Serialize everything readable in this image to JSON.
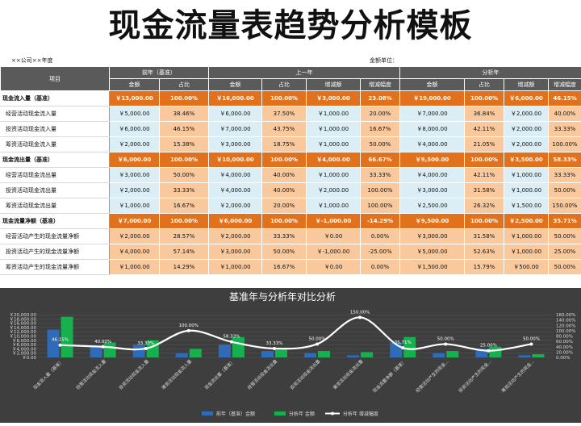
{
  "title": "现金流量表趋势分析模板",
  "company_line": "××公司××年度",
  "unit_line": "金额单位：",
  "headers": {
    "item": "项目",
    "groups": [
      "前年（基准）",
      "上一年",
      "分析年"
    ],
    "cols": [
      "金额",
      "占比",
      "金额",
      "占比",
      "增减额",
      "增减幅度",
      "金额",
      "占比",
      "增减额",
      "增减幅度"
    ]
  },
  "rows": [
    {
      "label": "现金流入量（基准）",
      "style": "hl",
      "cells": [
        "￥13,000.00",
        "100.00%",
        "￥16,000.00",
        "100.00%",
        "￥3,000.00",
        "23.08%",
        "￥19,000.00",
        "100.00%",
        "￥6,000.00",
        "46.15%"
      ]
    },
    {
      "label": "经营活动现金流入量",
      "style": "sb",
      "cells": [
        "￥5,000.00",
        "38.46%",
        "￥6,000.00",
        "37.50%",
        "￥1,000.00",
        "20.00%",
        "￥7,000.00",
        "36.84%",
        "￥2,000.00",
        "40.00%"
      ]
    },
    {
      "label": "投资活动现金流入量",
      "style": "sb",
      "cells": [
        "￥6,000.00",
        "46.15%",
        "￥7,000.00",
        "43.75%",
        "￥1,000.00",
        "16.67%",
        "￥8,000.00",
        "42.11%",
        "￥2,000.00",
        "33.33%"
      ]
    },
    {
      "label": "筹资活动现金流入量",
      "style": "sb",
      "cells": [
        "￥2,000.00",
        "15.38%",
        "￥3,000.00",
        "18.75%",
        "￥1,000.00",
        "50.00%",
        "￥4,000.00",
        "21.05%",
        "￥2,000.00",
        "100.00%"
      ]
    },
    {
      "label": "现金流出量（基准）",
      "style": "hl",
      "cells": [
        "￥6,000.00",
        "100.00%",
        "￥10,000.00",
        "100.00%",
        "￥4,000.00",
        "66.67%",
        "￥9,500.00",
        "100.00%",
        "￥3,500.00",
        "58.33%"
      ]
    },
    {
      "label": "经营活动现金流出量",
      "style": "sb",
      "cells": [
        "￥3,000.00",
        "50.00%",
        "￥4,000.00",
        "40.00%",
        "￥1,000.00",
        "33.33%",
        "￥4,000.00",
        "42.11%",
        "￥1,000.00",
        "33.33%"
      ]
    },
    {
      "label": "投资活动现金流出量",
      "style": "sb",
      "cells": [
        "￥2,000.00",
        "33.33%",
        "￥4,000.00",
        "40.00%",
        "￥2,000.00",
        "100.00%",
        "￥3,000.00",
        "31.58%",
        "￥1,000.00",
        "50.00%"
      ]
    },
    {
      "label": "筹资活动现金流出量",
      "style": "sb",
      "cells": [
        "￥1,000.00",
        "16.67%",
        "￥2,000.00",
        "20.00%",
        "￥1,000.00",
        "100.00%",
        "￥2,500.00",
        "26.32%",
        "￥1,500.00",
        "150.00%"
      ]
    },
    {
      "label": "现金流量净额（基准）",
      "style": "hl",
      "cells": [
        "￥7,000.00",
        "100.00%",
        "￥6,000.00",
        "100.00%",
        "￥-1,000.00",
        "-14.29%",
        "￥9,500.00",
        "100.00%",
        "￥2,500.00",
        "35.71%"
      ]
    },
    {
      "label": "经营活动产生的现金流量净额",
      "style": "so",
      "cells": [
        "￥2,000.00",
        "28.57%",
        "￥2,000.00",
        "33.33%",
        "￥0.00",
        "0.00%",
        "￥3,000.00",
        "31.58%",
        "￥1,000.00",
        "50.00%"
      ]
    },
    {
      "label": "投资活动产生的现金流量净额",
      "style": "so",
      "cells": [
        "￥4,000.00",
        "57.14%",
        "￥3,000.00",
        "50.00%",
        "￥-1,000.00",
        "-25.00%",
        "￥5,000.00",
        "52.63%",
        "￥1,000.00",
        "25.00%"
      ]
    },
    {
      "label": "筹资活动产生的现金流量净额",
      "style": "so",
      "cells": [
        "￥1,000.00",
        "14.29%",
        "￥1,000.00",
        "16.67%",
        "￥0.00",
        "0.00%",
        "￥1,500.00",
        "15.79%",
        "￥500.00",
        "50.00%"
      ]
    }
  ],
  "colors": {
    "header_gray": "#5a5a5a",
    "orange": "#e2711d",
    "light_blue": "#dbeef5",
    "light_orange": "#f9c99d",
    "bar_base": "#2e6bb8",
    "bar_analysis": "#17b04f",
    "line": "#ffffff",
    "chart_bg": "#3e3e3e"
  },
  "chart_data": {
    "type": "bar",
    "title": "基准年与分析年对比分析",
    "categories": [
      "现金流入量（基准）",
      "经营活动现金流入量",
      "投资活动现金流入量",
      "筹资活动现金流入量",
      "现金流出量（基准）",
      "经营活动现金流出量",
      "投资活动现金流出量",
      "筹资活动现金流出量",
      "现金流量净额（基准）",
      "经营活动产生的现金...",
      "投资活动产生的现金...",
      "筹资活动产生的现金..."
    ],
    "series": [
      {
        "name": "前年（基准）金额",
        "type": "bar",
        "axis": "left",
        "values": [
          13000,
          5000,
          6000,
          2000,
          6000,
          3000,
          2000,
          1000,
          7000,
          2000,
          4000,
          1000
        ]
      },
      {
        "name": "分析年 金额",
        "type": "bar",
        "axis": "left",
        "values": [
          19000,
          7000,
          8000,
          4000,
          9500,
          4000,
          3000,
          2500,
          9500,
          3000,
          5000,
          1500
        ]
      },
      {
        "name": "分析年 增减幅度",
        "type": "line",
        "axis": "right",
        "values": [
          46.15,
          40.0,
          33.33,
          100.0,
          58.33,
          33.33,
          50.0,
          150.0,
          35.71,
          50.0,
          25.0,
          50.0
        ]
      }
    ],
    "line_labels": [
      "46.15%",
      "40.00%",
      "33.33%",
      "100.00%",
      "58.33%",
      "33.33%",
      "50.00%",
      "150.00%",
      "35.71%",
      "50.00%",
      "25.00%",
      "50.00%"
    ],
    "left_ticks": [
      "￥0.00",
      "￥2,000.00",
      "￥4,000.00",
      "￥6,000.00",
      "￥8,000.00",
      "￥10,000.00",
      "￥12,000.00",
      "￥14,000.00",
      "￥16,000.00",
      "￥18,000.00",
      "￥20,000.00"
    ],
    "right_ticks": [
      "0.00%",
      "20.00%",
      "40.00%",
      "60.00%",
      "80.00%",
      "100.00%",
      "120.00%",
      "140.00%",
      "160.00%"
    ],
    "ylim_left": [
      0,
      20000
    ],
    "ylim_right": [
      0,
      160
    ],
    "legend_position": "bottom"
  }
}
